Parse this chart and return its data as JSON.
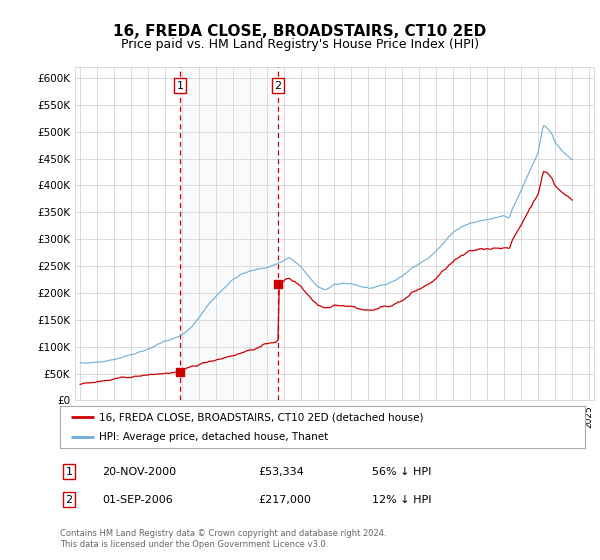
{
  "title": "16, FREDA CLOSE, BROADSTAIRS, CT10 2ED",
  "subtitle": "Price paid vs. HM Land Registry's House Price Index (HPI)",
  "legend_line1": "16, FREDA CLOSE, BROADSTAIRS, CT10 2ED (detached house)",
  "legend_line2": "HPI: Average price, detached house, Thanet",
  "footnote": "Contains HM Land Registry data © Crown copyright and database right 2024.\nThis data is licensed under the Open Government Licence v3.0.",
  "transaction1_label": "1",
  "transaction1_date": "20-NOV-2000",
  "transaction1_price": "£53,334",
  "transaction1_hpi": "56% ↓ HPI",
  "transaction2_label": "2",
  "transaction2_date": "01-SEP-2006",
  "transaction2_price": "£217,000",
  "transaction2_hpi": "12% ↓ HPI",
  "ylim": [
    0,
    620000
  ],
  "yticks": [
    0,
    50000,
    100000,
    150000,
    200000,
    250000,
    300000,
    350000,
    400000,
    450000,
    500000,
    550000,
    600000
  ],
  "xlim_start": 1994.7,
  "xlim_end": 2025.3,
  "event1_x": 2000.9,
  "event1_y": 53334,
  "event2_x": 2006.67,
  "event2_y": 217000,
  "red_color": "#cc0000",
  "blue_color": "#6baed6",
  "shade_color": "#dce6f1",
  "grid_color": "#cccccc",
  "bg_color": "#ffffff",
  "title_fontsize": 11,
  "subtitle_fontsize": 9
}
